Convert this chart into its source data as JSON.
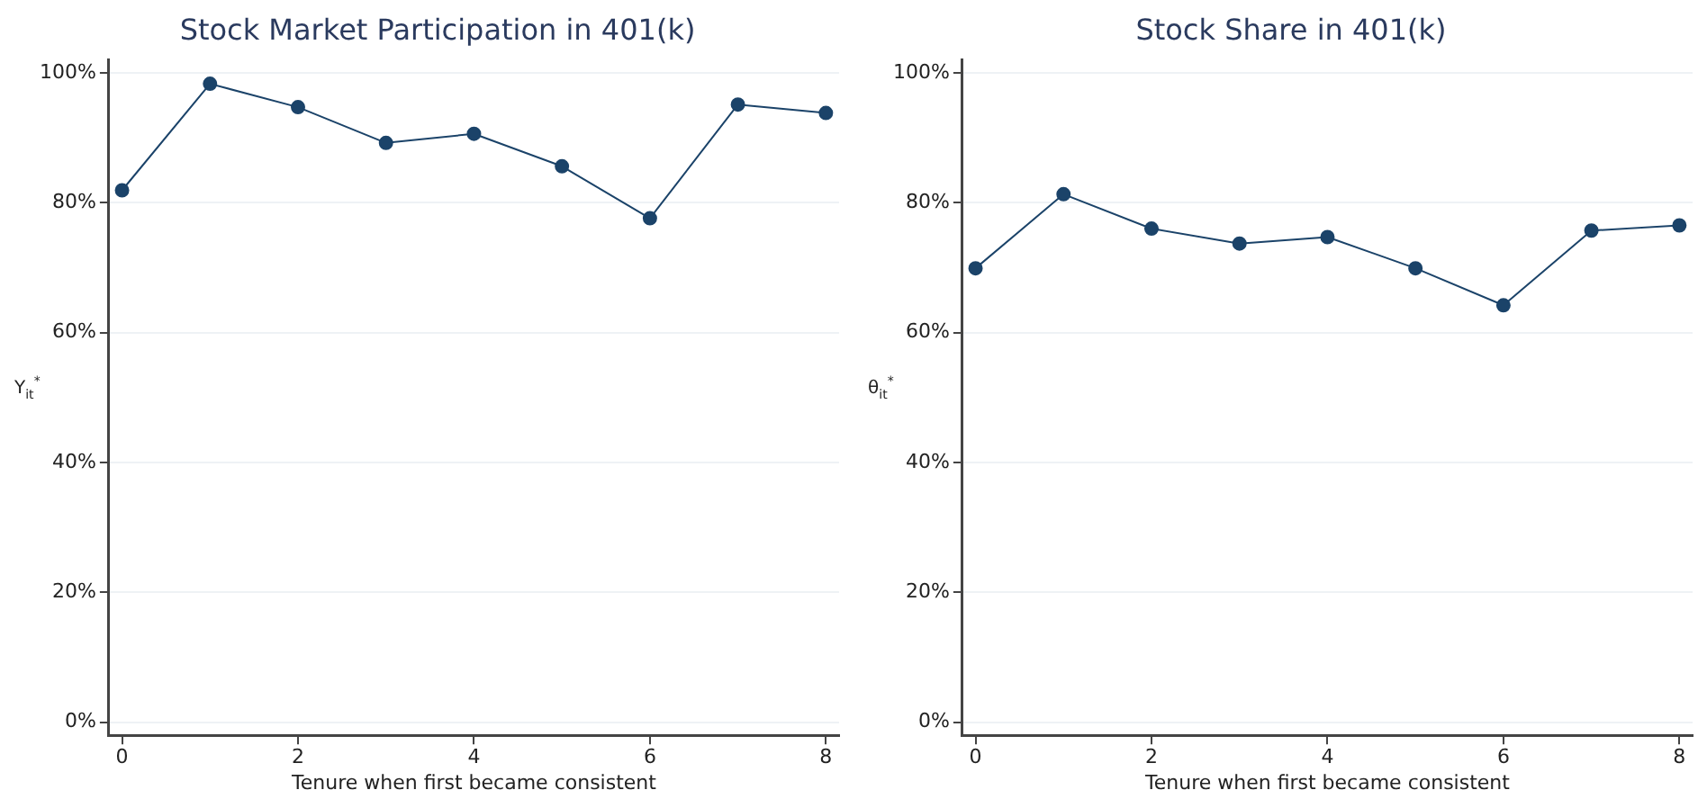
{
  "chart_data": [
    {
      "type": "line",
      "title": "Stock Market Participation in 401(k)",
      "xlabel": "Tenure when first became consistent",
      "ylabel": "Y$_{it}$$^{*}$",
      "x": [
        0,
        1,
        2,
        3,
        4,
        5,
        6,
        7,
        8
      ],
      "series": [
        {
          "color": "#1b4369",
          "values": [
            81.9,
            98.3,
            94.7,
            89.2,
            90.6,
            85.6,
            77.6,
            95.1,
            93.8
          ]
        }
      ],
      "xlim": [
        -0.15,
        8.15
      ],
      "xticks": [
        0,
        2,
        4,
        6,
        8
      ],
      "ylim": [
        -2,
        102
      ],
      "yticks": [
        {
          "value": 0,
          "label": "0%"
        },
        {
          "value": 20,
          "label": "20%"
        },
        {
          "value": 40,
          "label": "40%"
        },
        {
          "value": 60,
          "label": "60%"
        },
        {
          "value": 80,
          "label": "80%"
        },
        {
          "value": 100,
          "label": "100%"
        }
      ],
      "grid": "y",
      "legend": false,
      "marker": "circle",
      "line_style": "solid"
    },
    {
      "type": "line",
      "title": "Stock Share in 401(k)",
      "xlabel": "Tenure when first became consistent",
      "ylabel": "θ$_{it}$$^{*}$",
      "x": [
        0,
        1,
        2,
        3,
        4,
        5,
        6,
        7,
        8
      ],
      "series": [
        {
          "color": "#1b4369",
          "values": [
            69.9,
            81.3,
            76.0,
            73.7,
            74.7,
            69.9,
            64.2,
            75.7,
            76.5
          ]
        }
      ],
      "xlim": [
        -0.15,
        8.15
      ],
      "xticks": [
        0,
        2,
        4,
        6,
        8
      ],
      "ylim": [
        -2,
        102
      ],
      "yticks": [
        {
          "value": 0,
          "label": "0%"
        },
        {
          "value": 20,
          "label": "20%"
        },
        {
          "value": 40,
          "label": "40%"
        },
        {
          "value": 60,
          "label": "60%"
        },
        {
          "value": 80,
          "label": "80%"
        },
        {
          "value": 100,
          "label": "100%"
        }
      ],
      "grid": "y",
      "legend": false,
      "marker": "circle",
      "line_style": "solid"
    }
  ]
}
